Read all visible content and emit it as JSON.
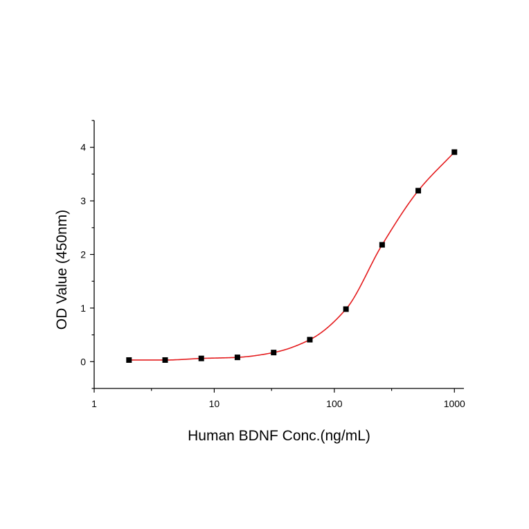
{
  "chart_data": {
    "type": "scatter",
    "title": "",
    "xlabel": "Human BDNF Conc.(ng/mL)",
    "ylabel": "OD Value (450nm)",
    "x_scale": "log",
    "xlim": [
      1,
      1200
    ],
    "ylim": [
      -0.5,
      4.5
    ],
    "x_ticks": [
      1,
      10,
      100,
      1000
    ],
    "x_tick_labels": [
      "1",
      "10",
      "100",
      "1000"
    ],
    "y_ticks": [
      0,
      1,
      2,
      3,
      4
    ],
    "y_tick_labels": [
      "0",
      "1",
      "2",
      "3",
      "4"
    ],
    "grid": false,
    "series": [
      {
        "marker": "square",
        "color": "#000000",
        "fit_color": "#e41a1c",
        "x": [
          1.95,
          3.9,
          7.8,
          15.6,
          31.25,
          62.5,
          125,
          250,
          500,
          1000
        ],
        "y": [
          0.03,
          0.03,
          0.06,
          0.08,
          0.17,
          0.41,
          0.98,
          2.18,
          3.19,
          3.91
        ]
      }
    ]
  }
}
